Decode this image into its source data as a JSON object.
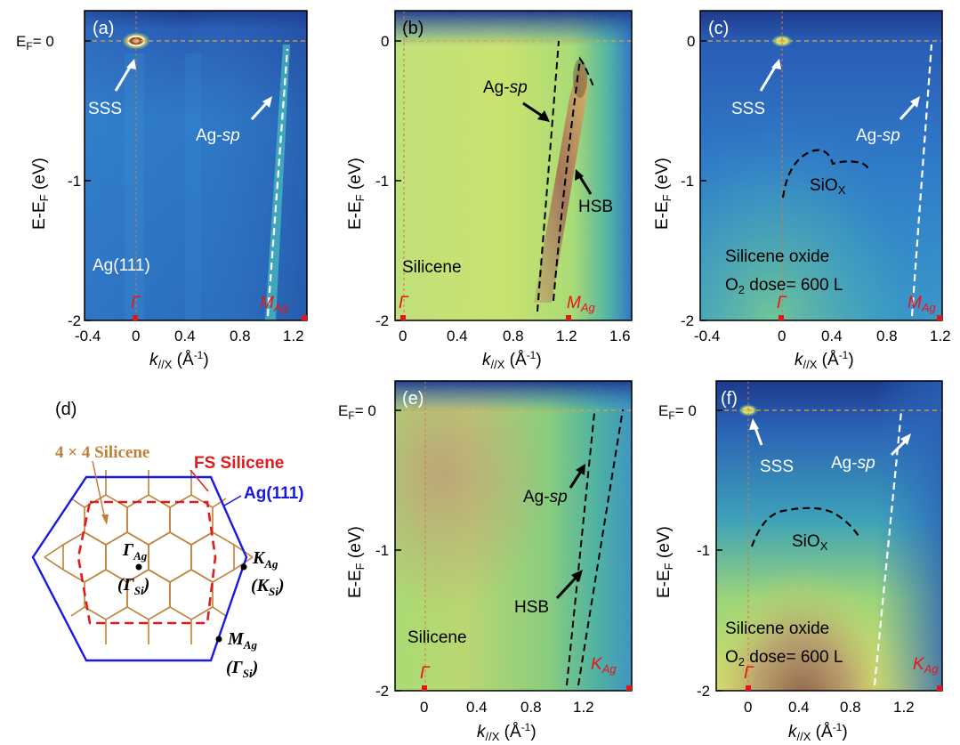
{
  "panels": {
    "a": {
      "label": "(a)",
      "ef_label": "E",
      "ef_sub": "F",
      "ef_value": "= 0",
      "ylabel": "E-E",
      "ylabel_sub": "F",
      "ylabel_unit": " (eV)",
      "xlabel": "k",
      "xlabel_sub": "//X",
      "xlabel_unit": " (Å",
      "xlabel_exp": "-1",
      "xlabel_close": ")",
      "xticks": [
        "-0.4",
        "0",
        "0.4",
        "0.8",
        "1.2"
      ],
      "yticks": [
        "0",
        "-1",
        "-2"
      ],
      "sym_left": "Γ",
      "sym_right": "M",
      "sym_right_sub": "Ag",
      "texts": [
        "SSS",
        "Ag(111)"
      ],
      "agsp": "Ag-",
      "agsp_it": "sp"
    },
    "b": {
      "label": "(b)",
      "xticks": [
        "0",
        "0.4",
        "0.8",
        "1.2",
        "1.6"
      ],
      "yticks": [
        "0",
        "-1",
        "-2"
      ],
      "sym_left": "Γ",
      "sym_right": "M",
      "sym_right_sub": "Ag",
      "texts": [
        "HSB",
        "Silicene"
      ],
      "agsp": "Ag-",
      "agsp_it": "sp"
    },
    "c": {
      "label": "(c)",
      "xticks": [
        "-0.4",
        "0",
        "0.4",
        "0.8",
        "1.2"
      ],
      "yticks": [
        "0",
        "-1",
        "-2"
      ],
      "sym_left": "Γ",
      "sym_right": "M",
      "sym_right_sub": "Ag",
      "texts": [
        "SSS",
        "Silicene oxide"
      ],
      "siox": "SiO",
      "siox_sub": "X",
      "dose": "O",
      "dose_sub": "2",
      "dose_rest": " dose= 600 L",
      "agsp": "Ag-",
      "agsp_it": "sp"
    },
    "d": {
      "label": "(d)",
      "silicene44": "4 × 4 Silicene",
      "fs_silicene": "FS Silicene",
      "ag111": "Ag(111)",
      "gamma_ag": "Γ",
      "gamma_ag_sub": "Ag",
      "gamma_si": "(Γ",
      "gamma_si_sub": "Si",
      "gamma_si_close": ")",
      "k_ag": "K",
      "k_ag_sub": "Ag",
      "k_si": "(K",
      "k_si_sub": "Si",
      "k_si_close": ")",
      "m_ag": "M",
      "m_ag_sub": "Ag",
      "m_si": "(Γ",
      "m_si_sub": "Si",
      "m_si_close": ")"
    },
    "e": {
      "label": "(e)",
      "xticks": [
        "0",
        "0.4",
        "0.8",
        "1.2"
      ],
      "yticks": [
        "0",
        "-1",
        "-2"
      ],
      "sym_left": "Γ",
      "sym_right": "K",
      "sym_right_sub": "Ag",
      "texts": [
        "HSB",
        "Silicene"
      ],
      "agsp": "Ag-",
      "agsp_it": "sp"
    },
    "f": {
      "label": "(f)",
      "xticks": [
        "0",
        "0.4",
        "0.8",
        "1.2"
      ],
      "yticks": [
        "0",
        "-1",
        "-2"
      ],
      "sym_left": "Γ",
      "sym_right": "K",
      "sym_right_sub": "Ag",
      "texts": [
        "SSS",
        "Silicene oxide"
      ],
      "siox": "SiO",
      "siox_sub": "X",
      "dose": "O",
      "dose_sub": "2",
      "dose_rest": " dose= 600 L",
      "agsp": "Ag-",
      "agsp_it": "sp"
    }
  },
  "colors": {
    "bg_dark": "#1f3a8a",
    "bg_mid": "#2f74c8",
    "green_yellow": "#b9e36a",
    "hex_blue": "#1a1adf",
    "hex_brown": "#c0803a",
    "fs_red": "#e11b1b",
    "sym_red": "#e8141b"
  }
}
